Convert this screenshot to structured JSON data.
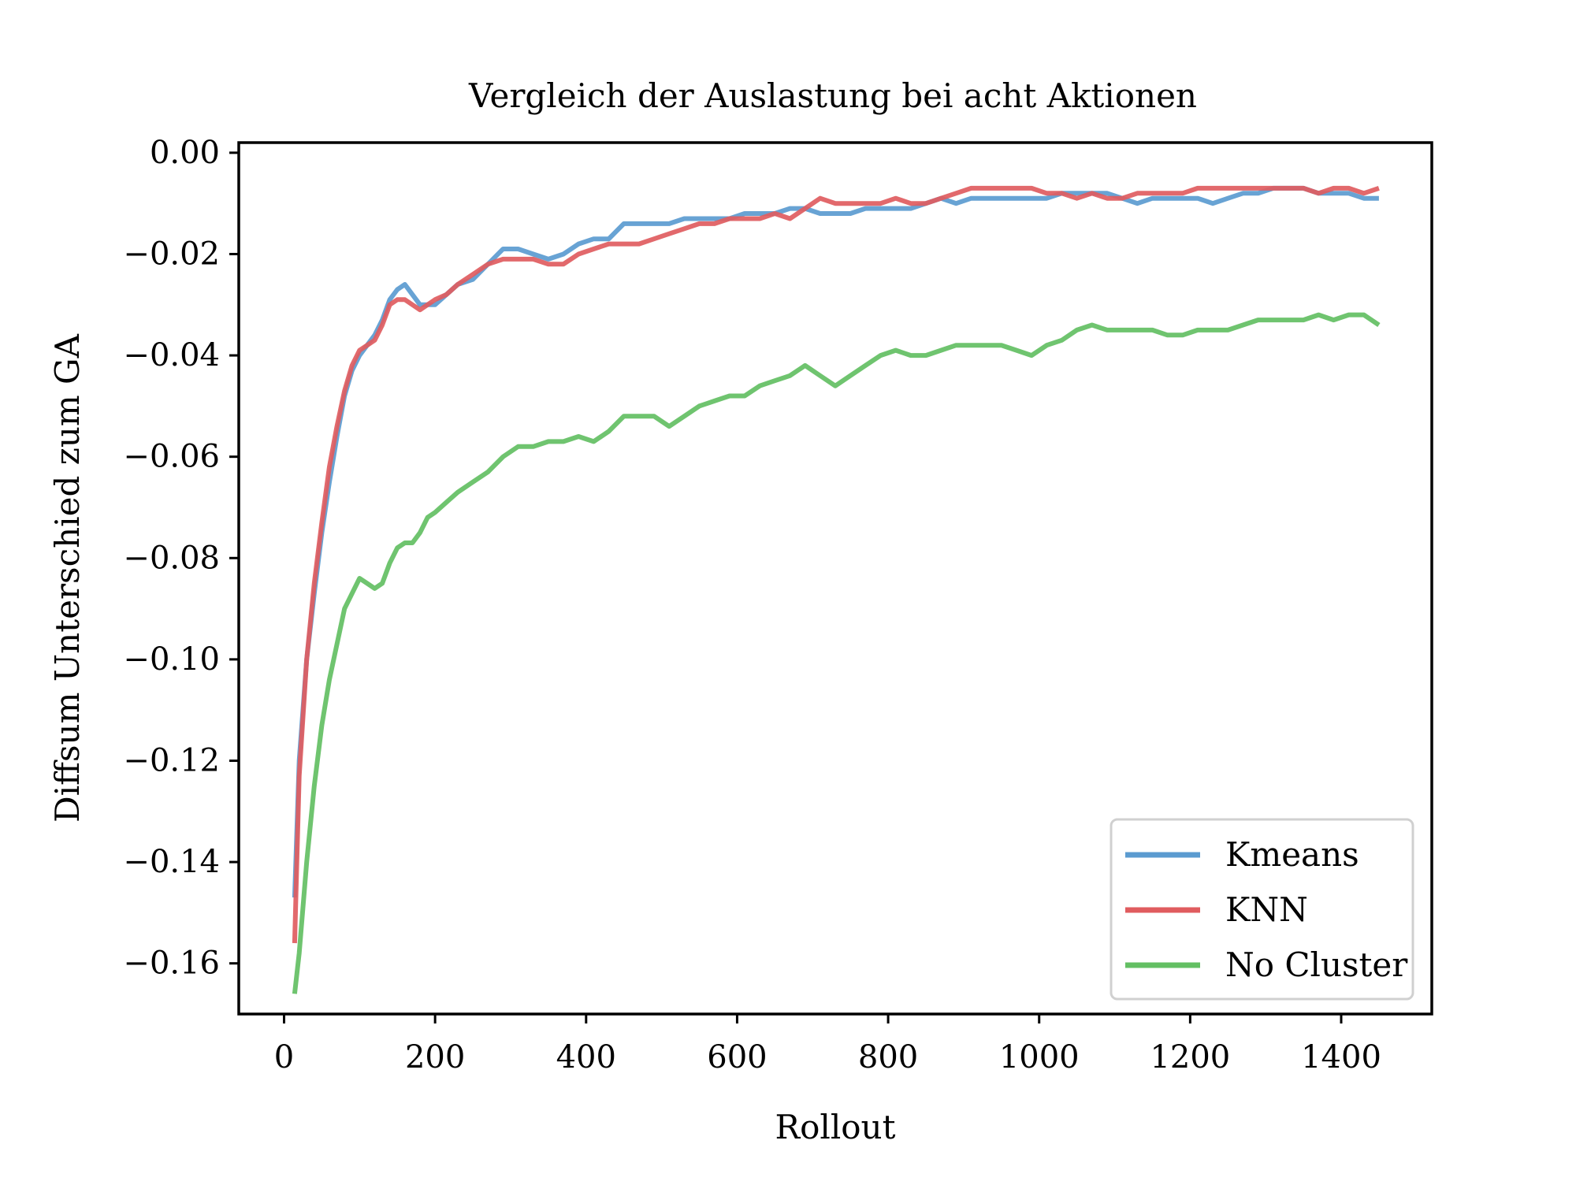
{
  "chart_data": {
    "type": "line",
    "title": "Vergleich der Auslastung bei acht Aktionen",
    "xlabel": "Rollout",
    "ylabel": "Diffsum Unterschied zum GA",
    "xlim": [
      -60,
      1520
    ],
    "ylim": [
      -0.17,
      0.002
    ],
    "xticks": [
      0,
      200,
      400,
      600,
      800,
      1000,
      1200,
      1400
    ],
    "xtick_labels": [
      "0",
      "200",
      "400",
      "600",
      "800",
      "1000",
      "1200",
      "1400"
    ],
    "yticks": [
      0.0,
      -0.02,
      -0.04,
      -0.06,
      -0.08,
      -0.1,
      -0.12,
      -0.14,
      -0.16
    ],
    "ytick_labels": [
      "0.00",
      "−0.02",
      "−0.04",
      "−0.06",
      "−0.08",
      "−0.10",
      "−0.12",
      "−0.14",
      "−0.16"
    ],
    "grid": false,
    "legend_position": "lower-right",
    "series": [
      {
        "name": "Kmeans",
        "color": "#5b9bd0",
        "x": [
          14,
          20,
          30,
          40,
          50,
          60,
          70,
          80,
          90,
          100,
          110,
          120,
          130,
          140,
          150,
          160,
          170,
          180,
          190,
          200,
          215,
          230,
          250,
          270,
          290,
          310,
          330,
          350,
          370,
          390,
          410,
          430,
          450,
          470,
          490,
          510,
          530,
          550,
          570,
          590,
          610,
          630,
          650,
          670,
          690,
          710,
          730,
          750,
          770,
          790,
          810,
          830,
          850,
          870,
          890,
          910,
          930,
          950,
          970,
          990,
          1010,
          1030,
          1050,
          1070,
          1090,
          1110,
          1130,
          1150,
          1170,
          1190,
          1210,
          1230,
          1250,
          1270,
          1290,
          1310,
          1330,
          1350,
          1370,
          1390,
          1410,
          1430,
          1450
        ],
        "y": [
          -0.147,
          -0.12,
          -0.1,
          -0.087,
          -0.075,
          -0.065,
          -0.056,
          -0.048,
          -0.043,
          -0.04,
          -0.038,
          -0.036,
          -0.033,
          -0.029,
          -0.027,
          -0.026,
          -0.028,
          -0.03,
          -0.03,
          -0.03,
          -0.028,
          -0.026,
          -0.025,
          -0.022,
          -0.019,
          -0.019,
          -0.02,
          -0.021,
          -0.02,
          -0.018,
          -0.017,
          -0.017,
          -0.014,
          -0.014,
          -0.014,
          -0.014,
          -0.013,
          -0.013,
          -0.013,
          -0.013,
          -0.012,
          -0.012,
          -0.012,
          -0.011,
          -0.011,
          -0.012,
          -0.012,
          -0.012,
          -0.011,
          -0.011,
          -0.011,
          -0.011,
          -0.01,
          -0.009,
          -0.01,
          -0.009,
          -0.009,
          -0.009,
          -0.009,
          -0.009,
          -0.009,
          -0.008,
          -0.008,
          -0.008,
          -0.008,
          -0.009,
          -0.01,
          -0.009,
          -0.009,
          -0.009,
          -0.009,
          -0.01,
          -0.009,
          -0.008,
          -0.008,
          -0.007,
          -0.007,
          -0.007,
          -0.008,
          -0.008,
          -0.008,
          -0.009,
          -0.009
        ]
      },
      {
        "name": "KNN",
        "color": "#e05c5f",
        "x": [
          14,
          20,
          30,
          40,
          50,
          60,
          70,
          80,
          90,
          100,
          110,
          120,
          130,
          140,
          150,
          160,
          170,
          180,
          190,
          200,
          215,
          230,
          250,
          270,
          290,
          310,
          330,
          350,
          370,
          390,
          410,
          430,
          450,
          470,
          490,
          510,
          530,
          550,
          570,
          590,
          610,
          630,
          650,
          670,
          690,
          710,
          730,
          750,
          770,
          790,
          810,
          830,
          850,
          870,
          890,
          910,
          930,
          950,
          970,
          990,
          1010,
          1030,
          1050,
          1070,
          1090,
          1110,
          1130,
          1150,
          1170,
          1190,
          1210,
          1230,
          1250,
          1270,
          1290,
          1310,
          1330,
          1350,
          1370,
          1390,
          1410,
          1430,
          1450
        ],
        "y": [
          -0.156,
          -0.123,
          -0.1,
          -0.085,
          -0.073,
          -0.062,
          -0.054,
          -0.047,
          -0.042,
          -0.039,
          -0.038,
          -0.037,
          -0.034,
          -0.03,
          -0.029,
          -0.029,
          -0.03,
          -0.031,
          -0.03,
          -0.029,
          -0.028,
          -0.026,
          -0.024,
          -0.022,
          -0.021,
          -0.021,
          -0.021,
          -0.022,
          -0.022,
          -0.02,
          -0.019,
          -0.018,
          -0.018,
          -0.018,
          -0.017,
          -0.016,
          -0.015,
          -0.014,
          -0.014,
          -0.013,
          -0.013,
          -0.013,
          -0.012,
          -0.013,
          -0.011,
          -0.009,
          -0.01,
          -0.01,
          -0.01,
          -0.01,
          -0.009,
          -0.01,
          -0.01,
          -0.009,
          -0.008,
          -0.007,
          -0.007,
          -0.007,
          -0.007,
          -0.007,
          -0.008,
          -0.008,
          -0.009,
          -0.008,
          -0.009,
          -0.009,
          -0.008,
          -0.008,
          -0.008,
          -0.008,
          -0.007,
          -0.007,
          -0.007,
          -0.007,
          -0.007,
          -0.007,
          -0.007,
          -0.007,
          -0.008,
          -0.007,
          -0.007,
          -0.008,
          -0.007
        ]
      },
      {
        "name": "No Cluster",
        "color": "#63bf63",
        "x": [
          14,
          20,
          30,
          40,
          50,
          60,
          70,
          80,
          90,
          100,
          110,
          120,
          130,
          140,
          150,
          160,
          170,
          180,
          190,
          200,
          215,
          230,
          250,
          270,
          290,
          310,
          330,
          350,
          370,
          390,
          410,
          430,
          450,
          470,
          490,
          510,
          530,
          550,
          570,
          590,
          610,
          630,
          650,
          670,
          690,
          710,
          730,
          750,
          770,
          790,
          810,
          830,
          850,
          870,
          890,
          910,
          930,
          950,
          970,
          990,
          1010,
          1030,
          1050,
          1070,
          1090,
          1110,
          1130,
          1150,
          1170,
          1190,
          1210,
          1230,
          1250,
          1270,
          1290,
          1310,
          1330,
          1350,
          1370,
          1390,
          1410,
          1430,
          1450
        ],
        "y": [
          -0.166,
          -0.158,
          -0.14,
          -0.125,
          -0.113,
          -0.104,
          -0.097,
          -0.09,
          -0.087,
          -0.084,
          -0.085,
          -0.086,
          -0.085,
          -0.081,
          -0.078,
          -0.077,
          -0.077,
          -0.075,
          -0.072,
          -0.071,
          -0.069,
          -0.067,
          -0.065,
          -0.063,
          -0.06,
          -0.058,
          -0.058,
          -0.057,
          -0.057,
          -0.056,
          -0.057,
          -0.055,
          -0.052,
          -0.052,
          -0.052,
          -0.054,
          -0.052,
          -0.05,
          -0.049,
          -0.048,
          -0.048,
          -0.046,
          -0.045,
          -0.044,
          -0.042,
          -0.044,
          -0.046,
          -0.044,
          -0.042,
          -0.04,
          -0.039,
          -0.04,
          -0.04,
          -0.039,
          -0.038,
          -0.038,
          -0.038,
          -0.038,
          -0.039,
          -0.04,
          -0.038,
          -0.037,
          -0.035,
          -0.034,
          -0.035,
          -0.035,
          -0.035,
          -0.035,
          -0.036,
          -0.036,
          -0.035,
          -0.035,
          -0.035,
          -0.034,
          -0.033,
          -0.033,
          -0.033,
          -0.033,
          -0.032,
          -0.033,
          -0.032,
          -0.032,
          -0.034
        ]
      }
    ]
  }
}
